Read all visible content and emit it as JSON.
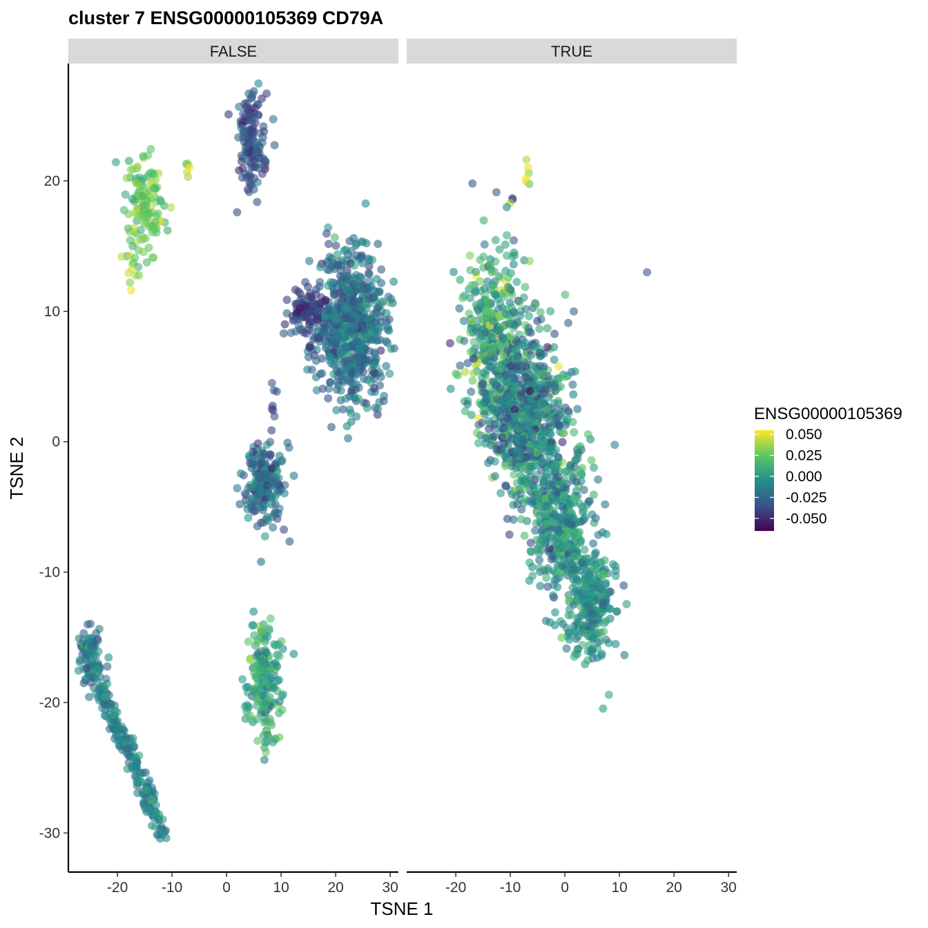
{
  "chart_data": {
    "type": "scatter",
    "title": "cluster 7 ENSG00000105369 CD79A",
    "xlabel": "TSNE 1",
    "ylabel": "TSNE 2",
    "xlim": [
      -29,
      31.5
    ],
    "ylim": [
      -33,
      29
    ],
    "x_ticks": [
      -20,
      -10,
      0,
      10,
      20,
      30
    ],
    "y_ticks": [
      20,
      10,
      0,
      -10,
      -20,
      -30
    ],
    "facets": [
      {
        "label": "FALSE",
        "clusters": [
          {
            "cx": -15,
            "cy": 18,
            "sx": 1.8,
            "sy": 1.8,
            "n": 130,
            "mean": 0.025,
            "sd": 0.012
          },
          {
            "cx": -17,
            "cy": 13,
            "sx": 1.2,
            "sy": 0.8,
            "n": 12,
            "mean": 0.03,
            "sd": 0.01
          },
          {
            "cx": -7,
            "cy": 20.5,
            "sx": 0.3,
            "sy": 0.6,
            "n": 6,
            "mean": 0.04,
            "sd": 0.008
          },
          {
            "cx": 4.5,
            "cy": 23,
            "sx": 1.3,
            "sy": 1.8,
            "n": 130,
            "mean": -0.035,
            "sd": 0.01
          },
          {
            "cx": 23,
            "cy": 9,
            "sx": 3.3,
            "sy": 3.0,
            "n": 650,
            "mean": -0.02,
            "sd": 0.012
          },
          {
            "cx": 14.5,
            "cy": 10,
            "sx": 2.0,
            "sy": 0.9,
            "n": 90,
            "mean": -0.04,
            "sd": 0.01
          },
          {
            "cx": 8.5,
            "cy": 3,
            "sx": 0.25,
            "sy": 0.8,
            "n": 8,
            "mean": -0.04,
            "sd": 0.006
          },
          {
            "cx": 7,
            "cy": -3.2,
            "sx": 1.8,
            "sy": 1.5,
            "n": 200,
            "mean": -0.02,
            "sd": 0.012
          },
          {
            "cx": 7,
            "cy": -18.5,
            "sx": 1.6,
            "sy": 2.2,
            "n": 190,
            "mean": 0.005,
            "sd": 0.015
          },
          {
            "cx": -25,
            "cy": -16.5,
            "sx": 1.1,
            "sy": 1.2,
            "n": 90,
            "mean": -0.015,
            "sd": 0.012
          },
          {
            "type": "line",
            "x0": -23.5,
            "y0": -18.5,
            "x1": -11.5,
            "y1": -30,
            "n": 200,
            "spread": 0.55,
            "mean": -0.012,
            "sd": 0.01
          }
        ]
      },
      {
        "label": "TRUE",
        "clusters": [
          {
            "cx": -7,
            "cy": 20,
            "sx": 0.3,
            "sy": 0.6,
            "n": 6,
            "mean": 0.04,
            "sd": 0.008
          },
          {
            "cx": -9.5,
            "cy": 18.6,
            "sx": 0.2,
            "sy": 0.1,
            "n": 2,
            "mean": -0.045,
            "sd": 0.004
          },
          {
            "cx": 15,
            "cy": 13,
            "sx": 0.1,
            "sy": 0.1,
            "n": 1,
            "mean": -0.03,
            "sd": 0.002
          },
          {
            "cx": -13,
            "cy": 8,
            "sx": 3.0,
            "sy": 3.5,
            "n": 380,
            "mean": 0.005,
            "sd": 0.02
          },
          {
            "cx": -7,
            "cy": 2,
            "sx": 3.6,
            "sy": 3.3,
            "n": 650,
            "mean": -0.01,
            "sd": 0.018
          },
          {
            "cx": -1,
            "cy": -6,
            "sx": 2.8,
            "sy": 2.8,
            "n": 380,
            "mean": -0.005,
            "sd": 0.015
          },
          {
            "cx": 4.5,
            "cy": -12.5,
            "sx": 2.3,
            "sy": 2.3,
            "n": 260,
            "mean": -0.005,
            "sd": 0.012
          }
        ]
      }
    ],
    "color_scale": {
      "name": "ENSG00000105369",
      "min": -0.065,
      "max": 0.055,
      "breaks": [
        0.05,
        0.025,
        0.0,
        -0.025,
        -0.05
      ],
      "labels": [
        "0.050",
        "0.025",
        "0.000",
        "-0.025",
        "-0.050"
      ],
      "colors": [
        "#440154",
        "#3b528b",
        "#21908c",
        "#5dc863",
        "#fde725"
      ]
    },
    "point_opacity": 0.6,
    "legend_position": "right",
    "grid": false
  }
}
